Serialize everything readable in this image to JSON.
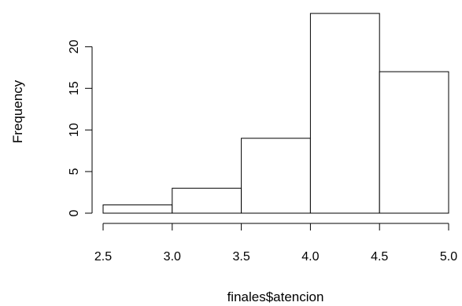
{
  "chart_data": {
    "type": "bar",
    "title": "",
    "xlabel": "finales$atencion",
    "ylabel": "Frequency",
    "bins": [
      {
        "start": 2.5,
        "end": 3.0,
        "value": 1
      },
      {
        "start": 3.0,
        "end": 3.5,
        "value": 3
      },
      {
        "start": 3.5,
        "end": 4.0,
        "value": 9
      },
      {
        "start": 4.0,
        "end": 4.5,
        "value": 24
      },
      {
        "start": 4.5,
        "end": 5.0,
        "value": 17
      }
    ],
    "x_ticks": [
      "2.5",
      "3.0",
      "3.5",
      "4.0",
      "4.5",
      "5.0"
    ],
    "y_ticks": [
      "0",
      "5",
      "10",
      "15",
      "20"
    ],
    "xlim": [
      2.5,
      5.0
    ],
    "ylim": [
      0,
      24
    ],
    "grid": false
  }
}
